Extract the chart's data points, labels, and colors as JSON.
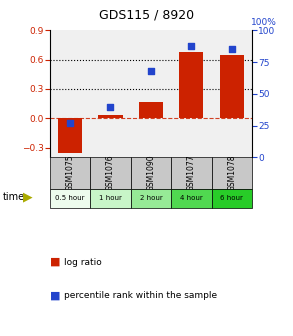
{
  "title": "GDS115 / 8920",
  "samples": [
    "GSM1075",
    "GSM1076",
    "GSM1090",
    "GSM1077",
    "GSM1078"
  ],
  "time_labels": [
    "0.5 hour",
    "1 hour",
    "2 hour",
    "4 hour",
    "6 hour"
  ],
  "time_colors": [
    "#edfced",
    "#c8f5c8",
    "#96ea96",
    "#50d850",
    "#28cc28"
  ],
  "log_ratio": [
    -0.35,
    0.03,
    0.17,
    0.68,
    0.65
  ],
  "percentile": [
    27,
    40,
    68,
    88,
    85
  ],
  "bar_color": "#cc2200",
  "dot_color": "#2244cc",
  "ylim_left": [
    -0.4,
    0.9
  ],
  "ylim_right": [
    0,
    100
  ],
  "yticks_left": [
    -0.3,
    0.0,
    0.3,
    0.6,
    0.9
  ],
  "yticks_right": [
    0,
    25,
    50,
    75,
    100
  ],
  "hlines": [
    0.3,
    0.6
  ],
  "zero_line": 0.0,
  "plot_bg": "#f0f0f0",
  "gsm_bg": "#c8c8c8",
  "legend_labels": [
    "log ratio",
    "percentile rank within the sample"
  ]
}
